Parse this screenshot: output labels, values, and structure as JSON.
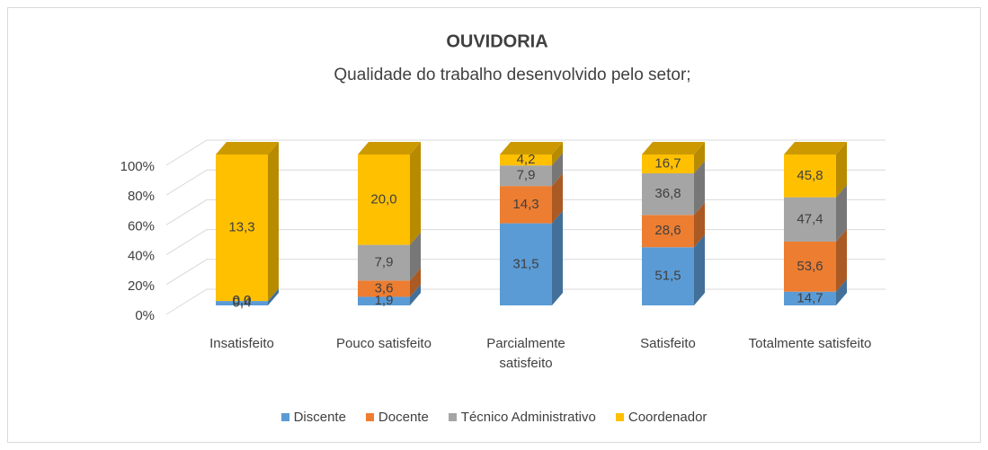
{
  "chart_data": {
    "type": "bar",
    "stacking": "percent",
    "three_d": true,
    "title": "OUVIDORIA",
    "subtitle": "Qualidade do trabalho desenvolvido pelo setor;",
    "categories": [
      "Insatisfeito",
      "Pouco satisfeito",
      "Parcialmente satisfeito",
      "Satisfeito",
      "Totalmente satisfeito"
    ],
    "series": [
      {
        "name": "Discente",
        "color": "#5b9bd5",
        "values": [
          0.4,
          1.9,
          31.5,
          51.5,
          14.7
        ],
        "value_labels": [
          "0,4",
          "1,9",
          "31,5",
          "51,5",
          "14,7"
        ]
      },
      {
        "name": "Docente",
        "color": "#ed7d31",
        "values": [
          0.0,
          3.6,
          14.3,
          28.6,
          53.6
        ],
        "value_labels": [
          "0,0",
          "3,6",
          "14,3",
          "28,6",
          "53,6"
        ]
      },
      {
        "name": "Técnico Administrativo",
        "color": "#a5a5a5",
        "values": [
          0.0,
          7.9,
          7.9,
          36.8,
          47.4
        ],
        "value_labels": [
          "0,0",
          "7,9",
          "7,9",
          "36,8",
          "47,4"
        ]
      },
      {
        "name": "Coordenador",
        "color": "#ffc000",
        "values": [
          13.3,
          20.0,
          4.2,
          16.7,
          45.8
        ],
        "value_labels": [
          "13,3",
          "20,0",
          "4,2",
          "16,7",
          "45,8"
        ]
      }
    ],
    "ylim": [
      0,
      100
    ],
    "yticks": [
      {
        "value": 0,
        "label": "0%"
      },
      {
        "value": 20,
        "label": "20%"
      },
      {
        "value": 40,
        "label": "40%"
      },
      {
        "value": 60,
        "label": "60%"
      },
      {
        "value": 80,
        "label": "80%"
      },
      {
        "value": 100,
        "label": "100%"
      }
    ],
    "grid": true,
    "legend": "bottom"
  }
}
